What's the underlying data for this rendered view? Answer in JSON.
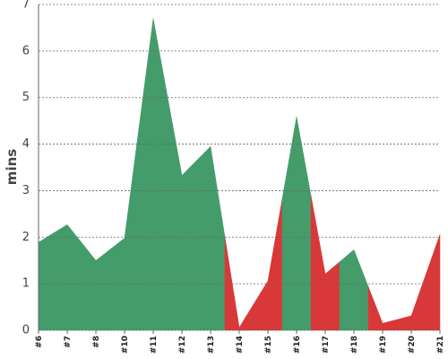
{
  "chart_data": {
    "type": "area",
    "y_label": "mins",
    "categories": [
      "#6",
      "#7",
      "#8",
      "#10",
      "#11",
      "#12",
      "#13",
      "#14",
      "#15",
      "#16",
      "#17",
      "#18",
      "#19",
      "#20",
      "#21"
    ],
    "values": [
      1.89,
      2.27,
      1.5,
      1.98,
      6.7,
      3.33,
      3.95,
      0.06,
      1.06,
      4.59,
      1.21,
      1.73,
      0.15,
      0.31,
      2.06
    ],
    "colors": [
      "#449c6b",
      "#449c6b",
      "#449c6b",
      "#449c6b",
      "#449c6b",
      "#449c6b",
      "#449c6b",
      "#d93838",
      "#d93838",
      "#449c6b",
      "#d93838",
      "#449c6b",
      "#d93838",
      "#d93838",
      "#d93838"
    ],
    "ylim": [
      0,
      7
    ],
    "yticks": [
      0,
      1,
      2,
      3,
      4,
      5,
      6,
      7
    ],
    "grid": true
  }
}
